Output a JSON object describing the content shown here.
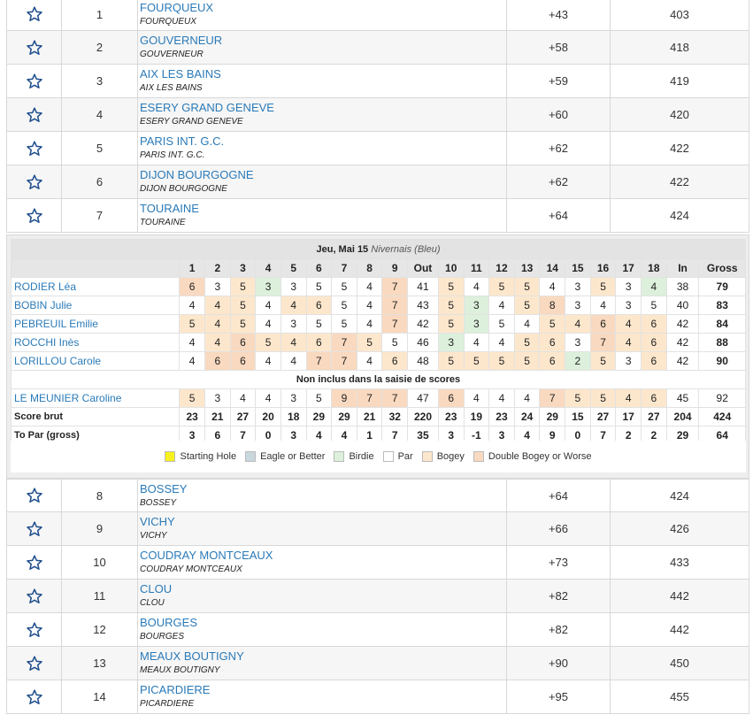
{
  "teams_top": [
    {
      "pos": "1",
      "name": "FOURQUEUX",
      "sub": "FOURQUEUX",
      "par": "+43",
      "total": "403"
    },
    {
      "pos": "2",
      "name": "GOUVERNEUR",
      "sub": "GOUVERNEUR",
      "par": "+58",
      "total": "418"
    },
    {
      "pos": "3",
      "name": "AIX LES BAINS",
      "sub": "AIX LES BAINS",
      "par": "+59",
      "total": "419"
    },
    {
      "pos": "4",
      "name": "ESERY GRAND GENEVE",
      "sub": "ESERY GRAND GENEVE",
      "par": "+60",
      "total": "420"
    },
    {
      "pos": "5",
      "name": "PARIS INT. G.C.",
      "sub": "PARIS INT. G.C.",
      "par": "+62",
      "total": "422"
    },
    {
      "pos": "6",
      "name": "DIJON BOURGOGNE",
      "sub": "DIJON BOURGOGNE",
      "par": "+62",
      "total": "422"
    },
    {
      "pos": "7",
      "name": "TOURAINE",
      "sub": "TOURAINE",
      "par": "+64",
      "total": "424"
    }
  ],
  "round": {
    "date": "Jeu, Mai 15",
    "course": "Nivernais (Bleu)",
    "headers": [
      "1",
      "2",
      "3",
      "4",
      "5",
      "6",
      "7",
      "8",
      "9",
      "Out",
      "10",
      "11",
      "12",
      "13",
      "14",
      "15",
      "16",
      "17",
      "18",
      "In",
      "Gross"
    ],
    "players": [
      {
        "name": "RODIER Léa",
        "scores": [
          "6",
          "3",
          "5",
          "3",
          "3",
          "5",
          "5",
          "4",
          "7",
          "41",
          "5",
          "4",
          "5",
          "5",
          "4",
          "3",
          "5",
          "3",
          "4",
          "38",
          "79"
        ],
        "cls": [
          "d",
          "",
          "b",
          "bd",
          "",
          "",
          "",
          "",
          "d",
          "",
          "b",
          "",
          "b",
          "b",
          "",
          "",
          "b",
          "",
          "bd",
          "",
          ""
        ]
      },
      {
        "name": "BOBIN Julie",
        "scores": [
          "4",
          "4",
          "5",
          "4",
          "4",
          "6",
          "5",
          "4",
          "7",
          "43",
          "5",
          "3",
          "4",
          "5",
          "8",
          "3",
          "4",
          "3",
          "5",
          "40",
          "83"
        ],
        "cls": [
          "",
          "b",
          "b",
          "",
          "b",
          "b",
          "",
          "",
          "d",
          "",
          "b",
          "bd",
          "",
          "b",
          "d",
          "",
          "",
          "",
          "",
          "",
          ""
        ]
      },
      {
        "name": "PEBREUIL Emilie",
        "scores": [
          "5",
          "4",
          "5",
          "4",
          "3",
          "5",
          "5",
          "4",
          "7",
          "42",
          "5",
          "3",
          "5",
          "4",
          "5",
          "4",
          "6",
          "4",
          "6",
          "42",
          "84"
        ],
        "cls": [
          "b",
          "b",
          "b",
          "",
          "",
          "",
          "",
          "",
          "d",
          "",
          "b",
          "bd",
          "",
          "",
          "b",
          "b",
          "d",
          "b",
          "b",
          "",
          ""
        ]
      },
      {
        "name": "ROCCHI Inès",
        "scores": [
          "4",
          "4",
          "6",
          "5",
          "4",
          "6",
          "7",
          "5",
          "5",
          "46",
          "3",
          "4",
          "4",
          "5",
          "6",
          "3",
          "7",
          "4",
          "6",
          "42",
          "88"
        ],
        "cls": [
          "",
          "b",
          "d",
          "b",
          "b",
          "b",
          "d",
          "b",
          "",
          "",
          "bd",
          "",
          "",
          "b",
          "b",
          "",
          "d",
          "b",
          "b",
          "",
          ""
        ]
      },
      {
        "name": "LORILLOU Carole",
        "scores": [
          "4",
          "6",
          "6",
          "4",
          "4",
          "7",
          "7",
          "4",
          "6",
          "48",
          "5",
          "5",
          "5",
          "5",
          "6",
          "2",
          "5",
          "3",
          "6",
          "42",
          "90"
        ],
        "cls": [
          "",
          "d",
          "d",
          "",
          "",
          "d",
          "d",
          "",
          "b",
          "",
          "b",
          "b",
          "b",
          "b",
          "b",
          "bd",
          "b",
          "",
          "b",
          "",
          ""
        ]
      }
    ],
    "note": "Non inclus dans la saisie de scores",
    "excluded": [
      {
        "name": "LE MEUNIER Caroline",
        "scores": [
          "5",
          "3",
          "4",
          "4",
          "3",
          "5",
          "9",
          "7",
          "7",
          "47",
          "6",
          "4",
          "4",
          "4",
          "7",
          "5",
          "5",
          "4",
          "6",
          "45",
          "92"
        ],
        "cls": [
          "b",
          "",
          "",
          "",
          "",
          "",
          "d",
          "d",
          "d",
          "",
          "d",
          "",
          "",
          "",
          "d",
          "b",
          "b",
          "b",
          "b",
          "",
          ""
        ]
      }
    ],
    "score_brut_label": "Score brut",
    "score_brut": [
      "23",
      "21",
      "27",
      "20",
      "18",
      "29",
      "29",
      "21",
      "32",
      "220",
      "23",
      "19",
      "23",
      "24",
      "29",
      "15",
      "27",
      "17",
      "27",
      "204",
      "424"
    ],
    "to_par_label": "To Par (gross)",
    "to_par": [
      "3",
      "6",
      "7",
      "0",
      "3",
      "4",
      "4",
      "1",
      "7",
      "35",
      "3",
      "-1",
      "3",
      "4",
      "9",
      "0",
      "7",
      "2",
      "2",
      "29",
      "64"
    ]
  },
  "legend": [
    {
      "label": "Starting Hole",
      "color": "#f7f21f"
    },
    {
      "label": "Eagle or Better",
      "color": "#c8d8dc"
    },
    {
      "label": "Birdie",
      "color": "#dcf0dc"
    },
    {
      "label": "Par",
      "color": "#ffffff"
    },
    {
      "label": "Bogey",
      "color": "#fde7cc"
    },
    {
      "label": "Double Bogey or Worse",
      "color": "#f9d9bf"
    }
  ],
  "teams_bottom": [
    {
      "pos": "8",
      "name": "BOSSEY",
      "sub": "BOSSEY",
      "par": "+64",
      "total": "424"
    },
    {
      "pos": "9",
      "name": "VICHY",
      "sub": "VICHY",
      "par": "+66",
      "total": "426"
    },
    {
      "pos": "10",
      "name": "COUDRAY MONTCEAUX",
      "sub": "COUDRAY MONTCEAUX",
      "par": "+73",
      "total": "433"
    },
    {
      "pos": "11",
      "name": "CLOU",
      "sub": "CLOU",
      "par": "+82",
      "total": "442"
    },
    {
      "pos": "12",
      "name": "BOURGES",
      "sub": "BOURGES",
      "par": "+82",
      "total": "442"
    },
    {
      "pos": "13",
      "name": "MEAUX BOUTIGNY",
      "sub": "MEAUX BOUTIGNY",
      "par": "+90",
      "total": "450"
    },
    {
      "pos": "14",
      "name": "PICARDIERE",
      "sub": "PICARDIERE",
      "par": "+95",
      "total": "455"
    }
  ]
}
